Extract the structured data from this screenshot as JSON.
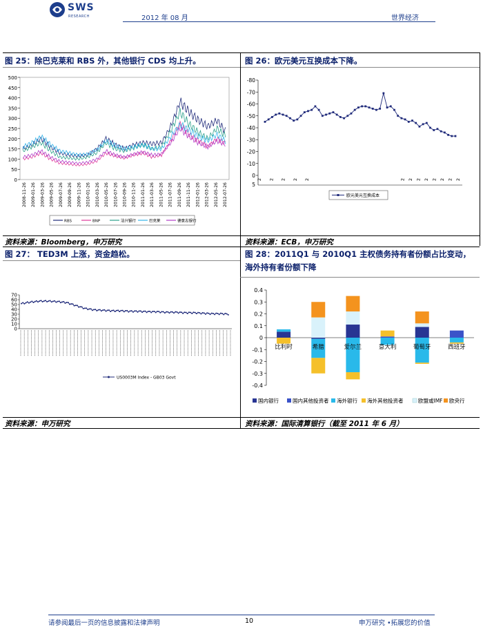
{
  "header": {
    "logo_text": "SWS",
    "logo_sub": "RESEARCH",
    "date": "2012 年 08 月",
    "section": "世界经济"
  },
  "fig25": {
    "title": "图 25：除巴克莱和 RBS 外，其他银行 CDS 均上升。",
    "source": "资料来源：Bloomberg，申万研究",
    "chart_data": {
      "type": "line",
      "yticks": [
        "500",
        "450",
        "400",
        "350",
        "300",
        "250",
        "200",
        "150",
        "100",
        "50",
        "0"
      ],
      "ylim": [
        0,
        500
      ],
      "x": [
        "2008-11-26",
        "2009-01-26",
        "2009-03-26",
        "2009-05-26",
        "2009-07-26",
        "2009-09-26",
        "2009-11-26",
        "2010-01-26",
        "2010-03-26",
        "2010-05-26",
        "2010-07-26",
        "2010-09-26",
        "2010-11-26",
        "2011-01-26",
        "2011-03-26",
        "2011-05-26",
        "2011-07-26",
        "2011-09-26",
        "2011-11-26",
        "2012-01-26",
        "2012-03-26",
        "2012-05-26",
        "2012-07-26"
      ],
      "series": [
        {
          "name": "RBS",
          "color": "#1f2a7a",
          "values": [
            150,
            170,
            200,
            160,
            130,
            120,
            115,
            120,
            150,
            200,
            170,
            150,
            170,
            180,
            175,
            180,
            260,
            380,
            330,
            290,
            260,
            290,
            230
          ]
        },
        {
          "name": "BNP",
          "color": "#e0399a",
          "values": [
            100,
            110,
            130,
            100,
            80,
            75,
            70,
            75,
            90,
            130,
            115,
            105,
            120,
            130,
            110,
            120,
            190,
            270,
            220,
            190,
            160,
            200,
            175
          ]
        },
        {
          "name": "法兴银行",
          "color": "#2aa08a",
          "values": [
            140,
            160,
            180,
            140,
            110,
            105,
            100,
            110,
            130,
            180,
            150,
            140,
            155,
            170,
            150,
            160,
            240,
            330,
            270,
            230,
            200,
            250,
            210
          ]
        },
        {
          "name": "巴克莱",
          "color": "#33b5ea",
          "values": [
            160,
            180,
            210,
            170,
            140,
            130,
            120,
            125,
            145,
            190,
            165,
            150,
            160,
            170,
            150,
            150,
            210,
            270,
            240,
            210,
            190,
            220,
            185
          ]
        },
        {
          "name": "德意志银行",
          "color": "#b03cc8",
          "values": [
            110,
            120,
            140,
            110,
            90,
            85,
            80,
            85,
            100,
            140,
            120,
            110,
            125,
            135,
            120,
            125,
            180,
            250,
            210,
            180,
            160,
            190,
            170
          ]
        }
      ]
    }
  },
  "fig26": {
    "title": "图 26：欧元美元互换成本下降。",
    "source": "资料来源：ECB，申万研究",
    "chart_data": {
      "type": "line",
      "yticks": [
        "-80",
        "-70",
        "-60",
        "-50",
        "-40",
        "-30",
        "-20",
        "-10",
        "0"
      ],
      "ylim": [
        -80,
        0
      ],
      "xticks": [
        "2",
        "2",
        "2",
        "2",
        "2",
        "2",
        "2",
        "2",
        "2",
        "2",
        "2",
        "2",
        "2"
      ],
      "x_zero_label": "5",
      "series": [
        {
          "name": "欧元美元互换成本",
          "color": "#1f2a7a",
          "values": [
            -45,
            -47,
            -49,
            -51,
            -52,
            -51,
            -50,
            -48,
            -46,
            -47,
            -50,
            -53,
            -54,
            -55,
            -58,
            -55,
            -50,
            -51,
            -52,
            -53,
            -51,
            -49,
            -48,
            -50,
            -52,
            -55,
            -57,
            -58,
            -58,
            -57,
            -56,
            -55,
            -56,
            -69,
            -57,
            -58,
            -55,
            -50,
            -48,
            -47,
            -45,
            -46,
            -44,
            -41,
            -43,
            -44,
            -40,
            -38,
            -39,
            -37,
            -36,
            -34,
            -33,
            -33
          ]
        }
      ]
    }
  },
  "fig27": {
    "title": "图 27： TED3M 上涨，资金趋松。",
    "source": "资料来源：申万研究",
    "chart_data": {
      "type": "line",
      "yticks": [
        "70",
        "60",
        "50",
        "40",
        "30",
        "20",
        "10",
        "0"
      ],
      "ylim": [
        0,
        70
      ],
      "series": [
        {
          "name": "US0003M Index - GB03 Govt",
          "color": "#1f2a7a",
          "values": [
            52,
            55,
            57,
            57,
            56,
            54,
            48,
            42,
            39,
            38,
            37,
            37,
            36,
            36,
            35,
            35,
            34,
            34,
            33,
            33,
            32,
            31,
            31,
            30
          ]
        }
      ]
    }
  },
  "fig28": {
    "title_line1": "图 28：2011Q1 与 2010Q1 主权债务持有者份额占比变动，",
    "title_line2": "海外持有者份额下降",
    "source": "资料来源：国际清算银行（截至 2011 年 6 月）",
    "chart_data": {
      "type": "bar",
      "stacked": true,
      "yticks": [
        "0.4",
        "0.3",
        "0.2",
        "0.1",
        "0",
        "-0.1",
        "-0.2",
        "-0.3",
        "-0.4"
      ],
      "ylim": [
        -0.4,
        0.4
      ],
      "categories": [
        "比利时",
        "希腊",
        "爱尔兰",
        "意大利",
        "葡萄牙",
        "西班牙"
      ],
      "series": [
        {
          "name": "国内银行",
          "color": "#283593",
          "values": [
            0.05,
            -0.01,
            0.11,
            0.0,
            0.09,
            0.0
          ]
        },
        {
          "name": "国内其他投资者",
          "color": "#3a52c9",
          "values": [
            0.0,
            0.0,
            0.0,
            0.01,
            0.0,
            0.06
          ]
        },
        {
          "name": "海外银行",
          "color": "#29b9ea",
          "values": [
            0.02,
            -0.16,
            -0.29,
            -0.06,
            -0.21,
            -0.04
          ]
        },
        {
          "name": "海外其他投资者",
          "color": "#f5c02a",
          "values": [
            -0.05,
            -0.13,
            -0.06,
            0.05,
            -0.01,
            -0.01
          ]
        },
        {
          "name": "欧盟或IMF",
          "color": "#d9f2fb",
          "values": [
            0.0,
            0.17,
            0.11,
            0.0,
            0.03,
            0.0
          ]
        },
        {
          "name": "欧央行",
          "color": "#f4931e",
          "values": [
            0.0,
            0.13,
            0.13,
            0.0,
            0.1,
            0.0
          ]
        }
      ]
    }
  },
  "footer": {
    "disclaimer": "请参阅最后一页的信息披露和法律声明",
    "page": "10",
    "slogan": "申万研究 •拓展您的价值"
  }
}
